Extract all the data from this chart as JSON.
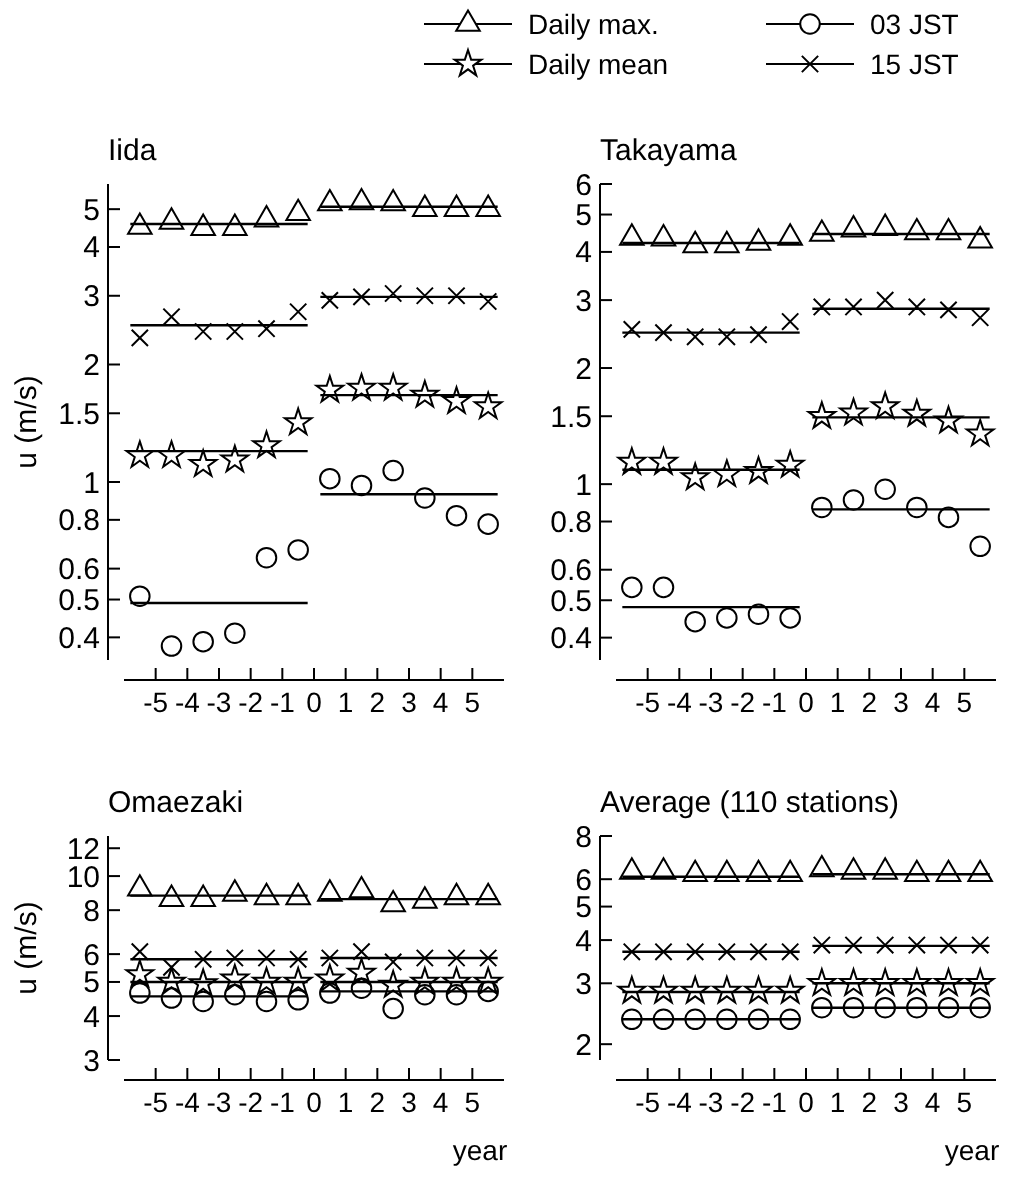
{
  "chart_data": [
    {
      "type": "scatter",
      "title": "Iida",
      "ylabel": "u (m/s)",
      "log": true,
      "xlim": [
        -6,
        6
      ],
      "xticks": [
        -5,
        -4,
        -3,
        -2,
        -1,
        0,
        1,
        2,
        3,
        4,
        5
      ],
      "ylim": [
        0.35,
        5.8
      ],
      "yticks": [
        0.4,
        0.5,
        0.6,
        0.8,
        1,
        1.5,
        2,
        3,
        4,
        5
      ],
      "x": [
        -5.5,
        -4.5,
        -3.5,
        -2.5,
        -1.5,
        -0.5,
        0.5,
        1.5,
        2.5,
        3.5,
        4.5,
        5.5
      ],
      "series": [
        {
          "type": "scatter",
          "marker": "triangle",
          "color": "#000000",
          "values": [
            4.5,
            4.64,
            4.47,
            4.47,
            4.7,
            4.88,
            5.17,
            5.2,
            5.17,
            5.0,
            5.0,
            5.0
          ]
        },
        {
          "type": "scatter",
          "marker": "star",
          "color": "#000000",
          "values": [
            1.17,
            1.17,
            1.11,
            1.14,
            1.24,
            1.42,
            1.72,
            1.74,
            1.74,
            1.67,
            1.61,
            1.56
          ]
        },
        {
          "type": "scatter",
          "marker": "circle",
          "color": "#000000",
          "values": [
            0.51,
            0.38,
            0.39,
            0.41,
            0.64,
            0.67,
            1.02,
            0.98,
            1.07,
            0.91,
            0.82,
            0.78
          ]
        },
        {
          "type": "scatter",
          "marker": "cross",
          "color": "#000000",
          "values": [
            2.34,
            2.65,
            2.43,
            2.43,
            2.47,
            2.73,
            2.92,
            2.98,
            3.04,
            3.0,
            3.0,
            2.9
          ]
        },
        {
          "type": "line",
          "color": "#000000",
          "x": [
            -5.8,
            -0.2
          ],
          "values": [
            4.58,
            4.58
          ]
        },
        {
          "type": "line",
          "color": "#000000",
          "x": [
            0.2,
            5.8
          ],
          "values": [
            5.07,
            5.07
          ]
        },
        {
          "type": "line",
          "color": "#000000",
          "x": [
            -5.8,
            -0.2
          ],
          "values": [
            1.2,
            1.2
          ]
        },
        {
          "type": "line",
          "color": "#000000",
          "x": [
            0.2,
            5.8
          ],
          "values": [
            1.67,
            1.67
          ]
        },
        {
          "type": "line",
          "color": "#000000",
          "x": [
            -5.8,
            -0.2
          ],
          "values": [
            0.49,
            0.49
          ]
        },
        {
          "type": "line",
          "color": "#000000",
          "x": [
            0.2,
            5.8
          ],
          "values": [
            0.93,
            0.93
          ]
        },
        {
          "type": "line",
          "color": "#000000",
          "x": [
            -5.8,
            -0.2
          ],
          "values": [
            2.52,
            2.52
          ]
        },
        {
          "type": "line",
          "color": "#000000",
          "x": [
            0.2,
            5.8
          ],
          "values": [
            2.98,
            2.98
          ]
        }
      ]
    },
    {
      "type": "scatter",
      "title": "Takayama",
      "log": true,
      "legend": "top",
      "xlim": [
        -6,
        6
      ],
      "xticks": [
        -5,
        -4,
        -3,
        -2,
        -1,
        0,
        1,
        2,
        3,
        4,
        5
      ],
      "ylim": [
        0.35,
        6
      ],
      "yticks": [
        0.4,
        0.5,
        0.6,
        0.8,
        1,
        1.5,
        2,
        3,
        4,
        5,
        6
      ],
      "x": [
        -5.5,
        -4.5,
        -3.5,
        -2.5,
        -1.5,
        -0.5,
        0.5,
        1.5,
        2.5,
        3.5,
        4.5,
        5.5
      ],
      "series": [
        {
          "name": "Daily max.",
          "type": "scatter",
          "marker": "triangle",
          "color": "#000000",
          "values": [
            4.35,
            4.33,
            4.16,
            4.16,
            4.22,
            4.35,
            4.45,
            4.57,
            4.61,
            4.49,
            4.49,
            4.28
          ]
        },
        {
          "name": "Daily mean",
          "type": "scatter",
          "marker": "star",
          "color": "#000000",
          "values": [
            1.14,
            1.14,
            1.04,
            1.06,
            1.08,
            1.12,
            1.5,
            1.53,
            1.59,
            1.52,
            1.46,
            1.35
          ]
        },
        {
          "name": "03 JST",
          "type": "scatter",
          "marker": "circle",
          "color": "#000000",
          "values": [
            0.54,
            0.54,
            0.44,
            0.45,
            0.46,
            0.45,
            0.87,
            0.91,
            0.97,
            0.87,
            0.82,
            0.69
          ]
        },
        {
          "name": "15 JST",
          "type": "scatter",
          "marker": "cross",
          "color": "#000000",
          "values": [
            2.52,
            2.47,
            2.41,
            2.41,
            2.44,
            2.64,
            2.88,
            2.88,
            3.0,
            2.88,
            2.83,
            2.7
          ]
        },
        {
          "type": "line",
          "color": "#000000",
          "x": [
            -5.8,
            -0.2
          ],
          "values": [
            4.22,
            4.22
          ]
        },
        {
          "type": "line",
          "color": "#000000",
          "x": [
            0.2,
            5.8
          ],
          "values": [
            4.45,
            4.45
          ]
        },
        {
          "type": "line",
          "color": "#000000",
          "x": [
            -5.8,
            -0.2
          ],
          "values": [
            1.09,
            1.09
          ]
        },
        {
          "type": "line",
          "color": "#000000",
          "x": [
            0.2,
            5.8
          ],
          "values": [
            1.49,
            1.49
          ]
        },
        {
          "type": "line",
          "color": "#000000",
          "x": [
            -5.8,
            -0.2
          ],
          "values": [
            0.48,
            0.48
          ]
        },
        {
          "type": "line",
          "color": "#000000",
          "x": [
            0.2,
            5.8
          ],
          "values": [
            0.86,
            0.86
          ]
        },
        {
          "type": "line",
          "color": "#000000",
          "x": [
            -5.8,
            -0.2
          ],
          "values": [
            2.47,
            2.47
          ]
        },
        {
          "type": "line",
          "color": "#000000",
          "x": [
            0.2,
            5.8
          ],
          "values": [
            2.85,
            2.85
          ]
        }
      ]
    },
    {
      "type": "scatter",
      "title": "Omaezaki",
      "ylabel": "u (m/s)",
      "xlabel": "year",
      "log": true,
      "xlim": [
        -6,
        6
      ],
      "xticks": [
        -5,
        -4,
        -3,
        -2,
        -1,
        0,
        1,
        2,
        3,
        4,
        5
      ],
      "ylim": [
        3,
        13
      ],
      "yticks": [
        3,
        4,
        5,
        6,
        8,
        10,
        12
      ],
      "x": [
        -5.5,
        -4.5,
        -3.5,
        -2.5,
        -1.5,
        -0.5,
        0.5,
        1.5,
        2.5,
        3.5,
        4.5,
        5.5
      ],
      "series": [
        {
          "type": "scatter",
          "marker": "triangle",
          "color": "#000000",
          "values": [
            9.2,
            8.6,
            8.6,
            8.9,
            8.7,
            8.7,
            8.9,
            9.1,
            8.3,
            8.5,
            8.7,
            8.7
          ]
        },
        {
          "type": "scatter",
          "marker": "star",
          "color": "#000000",
          "values": [
            5.25,
            5.0,
            4.95,
            5.1,
            5.0,
            5.0,
            5.1,
            5.3,
            4.9,
            5.0,
            5.0,
            5.0
          ]
        },
        {
          "type": "scatter",
          "marker": "circle",
          "color": "#000000",
          "values": [
            4.65,
            4.5,
            4.4,
            4.6,
            4.4,
            4.45,
            4.65,
            4.8,
            4.2,
            4.6,
            4.6,
            4.7
          ]
        },
        {
          "type": "scatter",
          "marker": "cross",
          "color": "#000000",
          "values": [
            6.1,
            5.5,
            5.8,
            5.85,
            5.85,
            5.8,
            5.85,
            6.1,
            5.7,
            5.85,
            5.85,
            5.85
          ]
        },
        {
          "type": "line",
          "color": "#000000",
          "x": [
            -5.8,
            -0.2
          ],
          "values": [
            8.8,
            8.8
          ]
        },
        {
          "type": "line",
          "color": "#000000",
          "x": [
            0.2,
            5.8
          ],
          "values": [
            8.6,
            8.6
          ]
        },
        {
          "type": "line",
          "color": "#000000",
          "x": [
            -5.8,
            -0.2
          ],
          "values": [
            5.0,
            5.0
          ]
        },
        {
          "type": "line",
          "color": "#000000",
          "x": [
            0.2,
            5.8
          ],
          "values": [
            5.0,
            5.0
          ]
        },
        {
          "type": "line",
          "color": "#000000",
          "x": [
            -5.8,
            -0.2
          ],
          "values": [
            4.55,
            4.55
          ]
        },
        {
          "type": "line",
          "color": "#000000",
          "x": [
            0.2,
            5.8
          ],
          "values": [
            4.7,
            4.7
          ]
        },
        {
          "type": "line",
          "color": "#000000",
          "x": [
            -5.8,
            -0.2
          ],
          "values": [
            5.8,
            5.8
          ]
        },
        {
          "type": "line",
          "color": "#000000",
          "x": [
            0.2,
            5.8
          ],
          "values": [
            5.85,
            5.85
          ]
        }
      ]
    },
    {
      "type": "scatter",
      "title": "Average (110 stations)",
      "xlabel": "year",
      "log": true,
      "xlim": [
        -6,
        6
      ],
      "xticks": [
        -5,
        -4,
        -3,
        -2,
        -1,
        0,
        1,
        2,
        3,
        4,
        5
      ],
      "ylim": [
        1.8,
        8
      ],
      "yticks": [
        2,
        3,
        4,
        5,
        6,
        8
      ],
      "x": [
        -5.5,
        -4.5,
        -3.5,
        -2.5,
        -1.5,
        -0.5,
        0.5,
        1.5,
        2.5,
        3.5,
        4.5,
        5.5
      ],
      "series": [
        {
          "type": "scatter",
          "marker": "triangle",
          "color": "#000000",
          "values": [
            6.3,
            6.3,
            6.2,
            6.2,
            6.2,
            6.2,
            6.4,
            6.3,
            6.3,
            6.2,
            6.2,
            6.2
          ]
        },
        {
          "type": "scatter",
          "marker": "star",
          "color": "#000000",
          "values": [
            2.85,
            2.85,
            2.85,
            2.85,
            2.85,
            2.85,
            3.0,
            3.0,
            3.0,
            3.0,
            3.0,
            3.0
          ]
        },
        {
          "type": "scatter",
          "marker": "circle",
          "color": "#000000",
          "values": [
            2.36,
            2.36,
            2.36,
            2.36,
            2.36,
            2.36,
            2.55,
            2.55,
            2.55,
            2.55,
            2.55,
            2.55
          ]
        },
        {
          "type": "scatter",
          "marker": "cross",
          "color": "#000000",
          "values": [
            3.7,
            3.7,
            3.7,
            3.7,
            3.7,
            3.7,
            3.87,
            3.87,
            3.87,
            3.87,
            3.87,
            3.87
          ]
        },
        {
          "type": "line",
          "color": "#000000",
          "x": [
            -5.8,
            -0.2
          ],
          "values": [
            6.1,
            6.1
          ]
        },
        {
          "type": "line",
          "color": "#000000",
          "x": [
            0.2,
            5.8
          ],
          "values": [
            6.2,
            6.2
          ]
        },
        {
          "type": "line",
          "color": "#000000",
          "x": [
            -5.8,
            -0.2
          ],
          "values": [
            2.83,
            2.83
          ]
        },
        {
          "type": "line",
          "color": "#000000",
          "x": [
            0.2,
            5.8
          ],
          "values": [
            3.0,
            3.0
          ]
        },
        {
          "type": "line",
          "color": "#000000",
          "x": [
            -5.8,
            -0.2
          ],
          "values": [
            2.36,
            2.36
          ]
        },
        {
          "type": "line",
          "color": "#000000",
          "x": [
            0.2,
            5.8
          ],
          "values": [
            2.55,
            2.55
          ]
        },
        {
          "type": "line",
          "color": "#000000",
          "x": [
            -5.8,
            -0.2
          ],
          "values": [
            3.7,
            3.7
          ]
        },
        {
          "type": "line",
          "color": "#000000",
          "x": [
            0.2,
            5.8
          ],
          "values": [
            3.85,
            3.85
          ]
        }
      ]
    }
  ]
}
